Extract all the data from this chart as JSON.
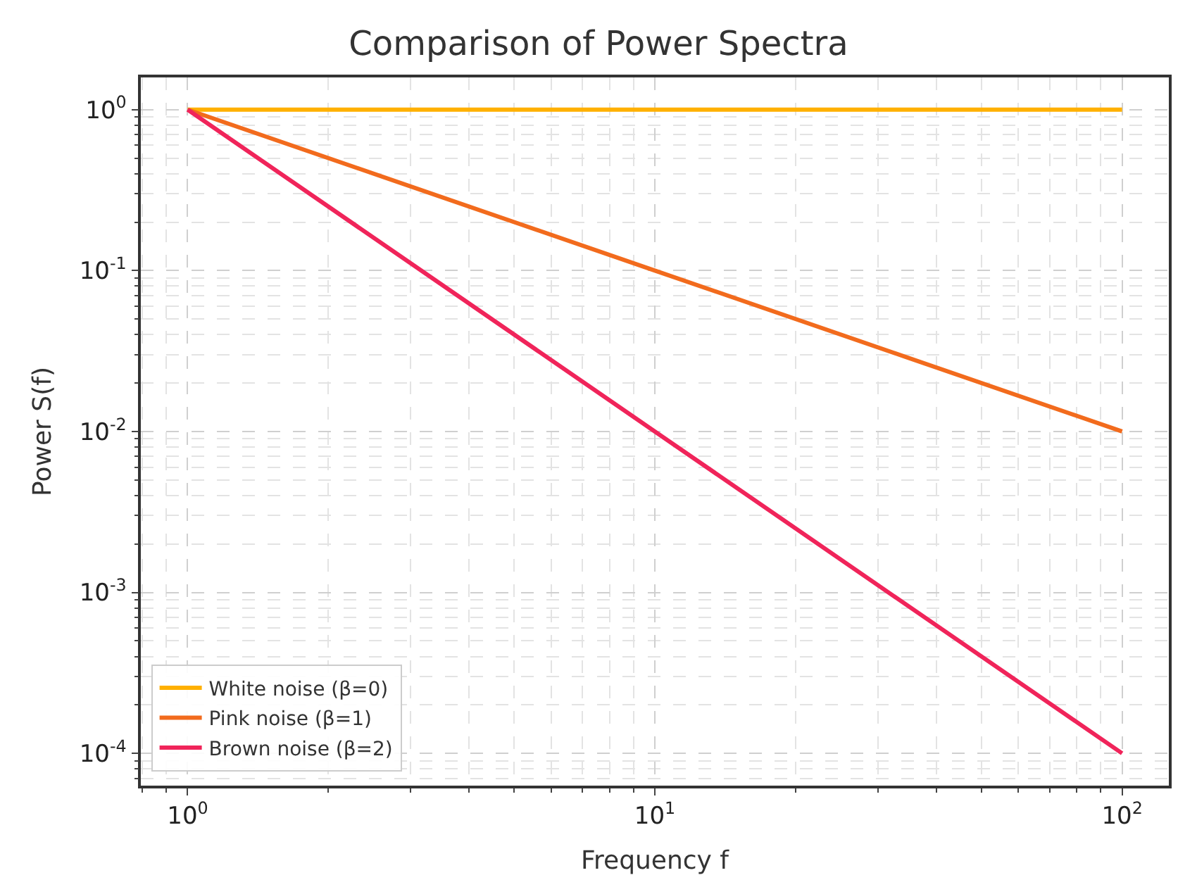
{
  "chart_data": {
    "type": "line",
    "title": "Comparison of Power Spectra",
    "xlabel": "Frequency f",
    "ylabel": "Power S(f)",
    "log": "xy",
    "grid": true,
    "legend": "bottom left",
    "marker": "none",
    "line_style": "solid",
    "xlim": [
      0.794,
      125.9
    ],
    "ylim": [
      6.3e-05,
      1.585
    ],
    "xticks": [
      {
        "value": 1,
        "label": "10$^{0}$"
      },
      {
        "value": 10,
        "label": "10$^{1}$"
      },
      {
        "value": 100,
        "label": "10$^{2}$"
      }
    ],
    "yticks": [
      {
        "value": 0.0001,
        "label": "10$^{-4}$"
      },
      {
        "value": 0.001,
        "label": "10$^{-3}$"
      },
      {
        "value": 0.01,
        "label": "10$^{-2}$"
      },
      {
        "value": 0.1,
        "label": "10$^{-1}$"
      },
      {
        "value": 1,
        "label": "10$^{0}$"
      }
    ],
    "x": [
      1,
      10,
      100
    ],
    "series": [
      {
        "name": "White noise (β=0)",
        "color": "#ffb000",
        "values": [
          1,
          1,
          1
        ]
      },
      {
        "name": "Pink noise (β=1)",
        "color": "#f26b1d",
        "values": [
          1,
          0.1,
          0.01
        ]
      },
      {
        "name": "Brown noise (β=2)",
        "color": "#f0245a",
        "values": [
          1,
          0.01,
          0.0001
        ]
      }
    ]
  }
}
